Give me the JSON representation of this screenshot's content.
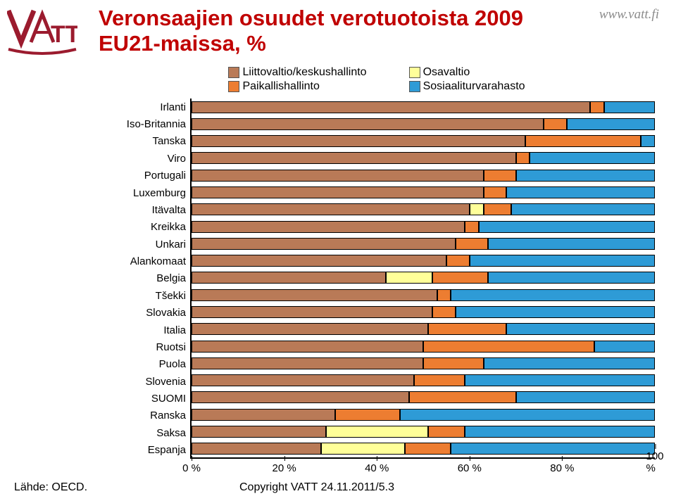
{
  "title": "Veronsaajien osuudet verotuotoista 2009 EU21-maissa, %",
  "url": "www.vatt.fi",
  "footer": {
    "source": "Lähde: OECD.",
    "copyright": "Copyright VATT 24.11.2011/5.3"
  },
  "logo": {
    "brand_color": "#9b1b2e",
    "text": "VATT"
  },
  "chart": {
    "type": "stacked_bar_horizontal",
    "legend": [
      {
        "label": "Liittovaltio/keskushallinto",
        "color": "#b97a57"
      },
      {
        "label": "Osavaltio",
        "color": "#ffff99"
      },
      {
        "label": "Paikallishallinto",
        "color": "#ed7d31"
      },
      {
        "label": "Sosiaaliturvarahasto",
        "color": "#2e9bd6"
      }
    ],
    "stroke_color": "#000000",
    "background": "#ffffff",
    "xlim": [
      0,
      100
    ],
    "xticks": [
      0,
      20,
      40,
      60,
      80,
      100
    ],
    "xtick_suffix": " %",
    "rows": [
      {
        "label": "Irlanti",
        "values": [
          86,
          0,
          3,
          11
        ]
      },
      {
        "label": "Iso-Britannia",
        "values": [
          76,
          0,
          5,
          19
        ]
      },
      {
        "label": "Tanska",
        "values": [
          72,
          0,
          25,
          3
        ]
      },
      {
        "label": "Viro",
        "values": [
          70,
          0,
          3,
          27
        ]
      },
      {
        "label": "Portugali",
        "values": [
          63,
          0,
          7,
          30
        ]
      },
      {
        "label": "Luxemburg",
        "values": [
          63,
          0,
          5,
          32
        ]
      },
      {
        "label": "Itävalta",
        "values": [
          60,
          3,
          6,
          31
        ]
      },
      {
        "label": "Kreikka",
        "values": [
          59,
          0,
          3,
          38
        ]
      },
      {
        "label": "Unkari",
        "values": [
          57,
          0,
          7,
          36
        ]
      },
      {
        "label": "Alankomaat",
        "values": [
          55,
          0,
          5,
          40
        ]
      },
      {
        "label": "Belgia",
        "values": [
          42,
          10,
          12,
          36
        ]
      },
      {
        "label": "Tšekki",
        "values": [
          53,
          0,
          3,
          44
        ]
      },
      {
        "label": "Slovakia",
        "values": [
          52,
          0,
          5,
          43
        ]
      },
      {
        "label": "Italia",
        "values": [
          51,
          0,
          17,
          32
        ]
      },
      {
        "label": "Ruotsi",
        "values": [
          50,
          0,
          37,
          13
        ]
      },
      {
        "label": "Puola",
        "values": [
          50,
          0,
          13,
          37
        ]
      },
      {
        "label": "Slovenia",
        "values": [
          48,
          0,
          11,
          41
        ]
      },
      {
        "label": "SUOMI",
        "values": [
          47,
          0,
          23,
          30
        ]
      },
      {
        "label": "Ranska",
        "values": [
          31,
          0,
          14,
          55
        ]
      },
      {
        "label": "Saksa",
        "values": [
          29,
          22,
          8,
          41
        ]
      },
      {
        "label": "Espanja",
        "values": [
          28,
          18,
          10,
          44
        ]
      }
    ]
  }
}
